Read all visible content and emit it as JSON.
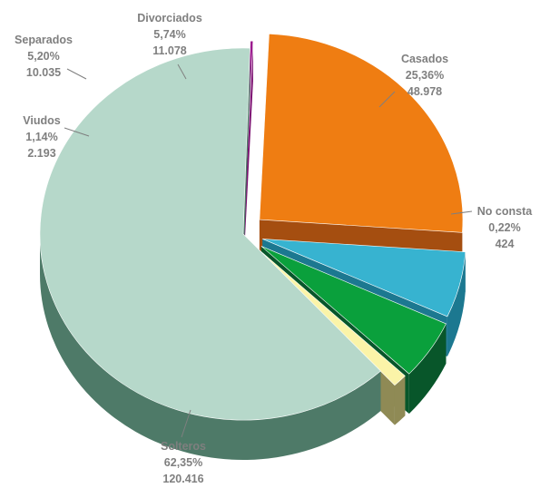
{
  "chart_data": {
    "type": "pie",
    "style": "3d-exploded",
    "title": "",
    "legend": "none",
    "slices": [
      {
        "name": "Casados",
        "percent_label": "25,36%",
        "count_label": "48.978",
        "value": 48978,
        "percent": 25.36,
        "color": "#ef7d12",
        "side_color": "#a54e10",
        "exploded": true
      },
      {
        "name": "No consta",
        "percent_label": "0,22%",
        "count_label": "424",
        "value": 424,
        "percent": 0.22,
        "color": "#9b1a8e",
        "side_color": "#7a1070",
        "exploded": true
      },
      {
        "name": "Solteros",
        "percent_label": "62,35%",
        "count_label": "120.416",
        "value": 120416,
        "percent": 62.35,
        "color": "#b6d8ca",
        "side_color": "#4e7a68",
        "exploded": false
      },
      {
        "name": "Viudos",
        "percent_label": "1,14%",
        "count_label": "2.193",
        "value": 2193,
        "percent": 1.14,
        "color": "#fbf4a8",
        "side_color": "#8f8a55",
        "exploded": true
      },
      {
        "name": "Separados",
        "percent_label": "5,20%",
        "count_label": "10.035",
        "value": 10035,
        "percent": 5.2,
        "color": "#0aa03c",
        "side_color": "#08562a",
        "exploded": true
      },
      {
        "name": "Divorciados",
        "percent_label": "5,74%",
        "count_label": "11.078",
        "value": 11078,
        "percent": 5.74,
        "color": "#37b3d0",
        "side_color": "#1c7890",
        "exploded": true
      }
    ]
  }
}
